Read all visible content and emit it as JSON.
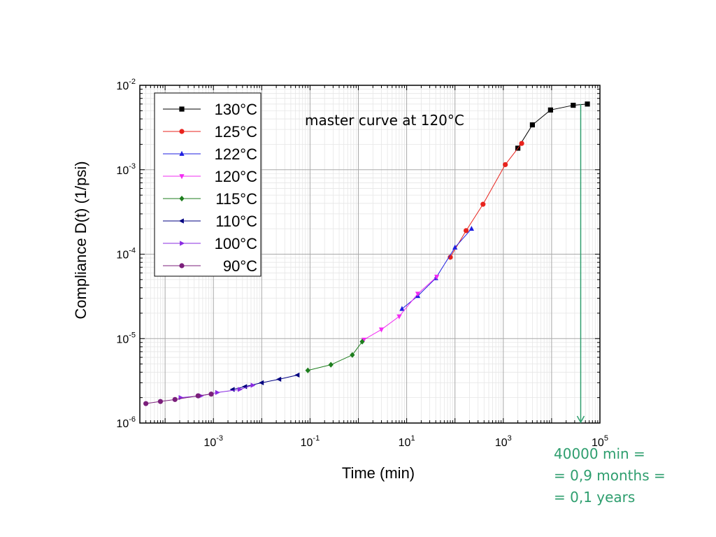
{
  "chart_data": {
    "type": "line",
    "x_scale": "log",
    "y_scale": "log",
    "xlabel": "Time (min)",
    "ylabel": "Compliance D(t) (1/psi)",
    "xlim": [
      3e-05,
      100000
    ],
    "ylim": [
      1e-06,
      0.01
    ],
    "x_ticks": [
      {
        "base": "10",
        "exp": "-3",
        "value": 0.001
      },
      {
        "base": "10",
        "exp": "-1",
        "value": 0.1
      },
      {
        "base": "10",
        "exp": "1",
        "value": 10
      },
      {
        "base": "10",
        "exp": "3",
        "value": 1000
      },
      {
        "base": "10",
        "exp": "5",
        "value": 100000
      }
    ],
    "y_ticks": [
      {
        "base": "10",
        "exp": "-6",
        "value": 1e-06
      },
      {
        "base": "10",
        "exp": "-5",
        "value": 1e-05
      },
      {
        "base": "10",
        "exp": "-4",
        "value": 0.0001
      },
      {
        "base": "10",
        "exp": "-3",
        "value": 0.001
      },
      {
        "base": "10",
        "exp": "-2",
        "value": 0.01
      }
    ],
    "grid": true,
    "legend_position": "top-left",
    "annotation": "master curve at 120°C",
    "series": [
      {
        "name": "130°C",
        "color": "#000000",
        "marker": "square",
        "x": [
          2000,
          4000,
          9500,
          28000,
          55000
        ],
        "y": [
          0.0018,
          0.0034,
          0.0051,
          0.0058,
          0.006
        ]
      },
      {
        "name": "125°C",
        "color": "#e8231d",
        "marker": "circle",
        "x": [
          80,
          170,
          380,
          1100,
          2400
        ],
        "y": [
          9.2e-05,
          0.00019,
          0.00039,
          0.00115,
          0.00205
        ]
      },
      {
        "name": "122°C",
        "color": "#1f1fe0",
        "marker": "triangle-up",
        "x": [
          8,
          17,
          40,
          100,
          220
        ],
        "y": [
          2.25e-05,
          3.2e-05,
          5.2e-05,
          0.00012,
          0.0002
        ]
      },
      {
        "name": "120°C",
        "color": "#f22cf2",
        "marker": "triangle-down",
        "x": [
          1.3,
          3,
          7,
          17,
          42
        ],
        "y": [
          9.7e-06,
          1.28e-05,
          1.83e-05,
          3.4e-05,
          5.4e-05
        ]
      },
      {
        "name": "115°C",
        "color": "#1e7e1e",
        "marker": "diamond",
        "x": [
          0.09,
          0.27,
          0.75,
          1.2
        ],
        "y": [
          4.2e-06,
          4.9e-06,
          6.4e-06,
          9.2e-06
        ]
      },
      {
        "name": "110°C",
        "color": "#000080",
        "marker": "triangle-left",
        "x": [
          0.0025,
          0.0045,
          0.01,
          0.023,
          0.055
        ],
        "y": [
          2.5e-06,
          2.7e-06,
          3e-06,
          3.3e-06,
          3.7e-06
        ]
      },
      {
        "name": "100°C",
        "color": "#8a2be2",
        "marker": "triangle-right",
        "x": [
          0.00021,
          0.00055,
          0.0012,
          0.0035,
          0.0065
        ],
        "y": [
          2e-06,
          2.1e-06,
          2.3e-06,
          2.5e-06,
          2.8e-06
        ]
      },
      {
        "name": "90°C",
        "color": "#7b1f7b",
        "marker": "circle",
        "x": [
          4e-05,
          8e-05,
          0.00016,
          0.00048,
          0.0009
        ],
        "y": [
          1.7e-06,
          1.8e-06,
          1.9e-06,
          2.1e-06,
          2.2e-06
        ]
      }
    ],
    "arrow": {
      "x": 40000,
      "y_from": 0.006,
      "y_to": 1e-06,
      "color": "#2e9e6e"
    }
  },
  "note": {
    "line1": "40000 min =",
    "line2": "= 0,9 months =",
    "line3": "= 0,1 years",
    "color": "#2e9e6e"
  }
}
